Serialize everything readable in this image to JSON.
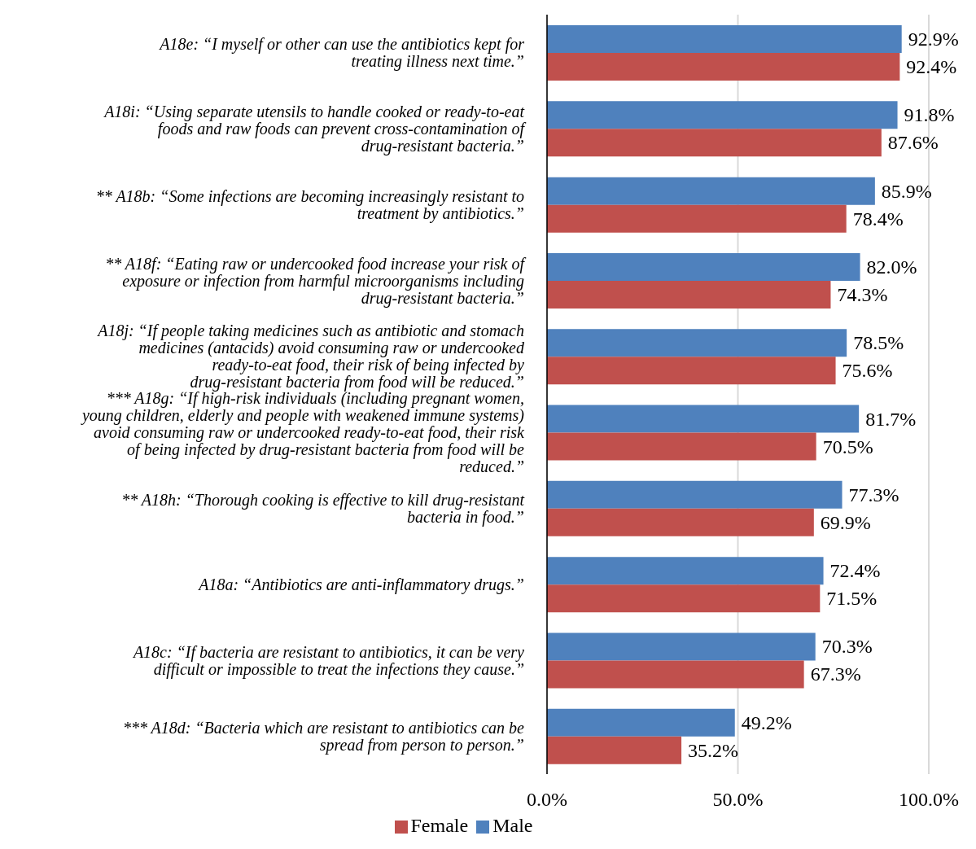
{
  "chart_data": {
    "type": "bar",
    "orientation": "horizontal",
    "categories": [
      "A18e: “I myself or other can use the antibiotics kept for treating illness next time.”",
      "A18i: “Using separate utensils to handle cooked or ready-to-eat foods and raw foods can prevent cross-contamination of drug-resistant bacteria.”",
      "** A18b: “Some infections are becoming increasingly resistant to treatment by antibiotics.”",
      "** A18f: “Eating raw or undercooked food increase your risk of exposure or infection from harmful microorganisms including drug-resistant bacteria.”",
      "A18j: “If people taking medicines such as antibiotic and stomach medicines (antacids) avoid consuming raw or undercooked ready-to-eat food, their risk of being infected by drug-resistant bacteria from food will be reduced.”",
      "*** A18g: “If high-risk individuals (including pregnant women, young children, elderly and people with weakened immune systems) avoid consuming raw or undercooked ready-to-eat food, their risk of being infected by drug-resistant bacteria from food will be reduced.”",
      "** A18h: “Thorough cooking is effective to kill drug-resistant bacteria in food.”",
      "A18a: “Antibiotics are anti-inflammatory drugs.”",
      "A18c: “If bacteria are resistant to antibiotics, it can be very difficult or impossible to treat the infections they cause.”",
      "*** A18d: “Bacteria which are resistant to antibiotics can be spread from person to person.”"
    ],
    "series": [
      {
        "name": "Male",
        "color": "#4f81bd",
        "values": [
          92.9,
          91.8,
          85.9,
          82.0,
          78.5,
          81.7,
          77.3,
          72.4,
          70.3,
          49.2
        ],
        "value_labels": [
          "92.9%",
          "91.8%",
          "85.9%",
          "82.0%",
          "78.5%",
          "81.7%",
          "77.3%",
          "72.4%",
          "70.3%",
          "49.2%"
        ]
      },
      {
        "name": "Female",
        "color": "#c0504d",
        "values": [
          92.4,
          87.6,
          78.4,
          74.3,
          75.6,
          70.5,
          69.9,
          71.5,
          67.3,
          35.2
        ],
        "value_labels": [
          "92.4%",
          "87.6%",
          "78.4%",
          "74.3%",
          "75.6%",
          "70.5%",
          "69.9%",
          "71.5%",
          "67.3%",
          "35.2%"
        ]
      }
    ],
    "xlim": [
      0,
      100
    ],
    "xticks": [
      {
        "value": 0,
        "label": "0.0%"
      },
      {
        "value": 50,
        "label": "50.0%"
      },
      {
        "value": 100,
        "label": "100.0%"
      }
    ],
    "grid": "x",
    "legend": "bottom"
  }
}
